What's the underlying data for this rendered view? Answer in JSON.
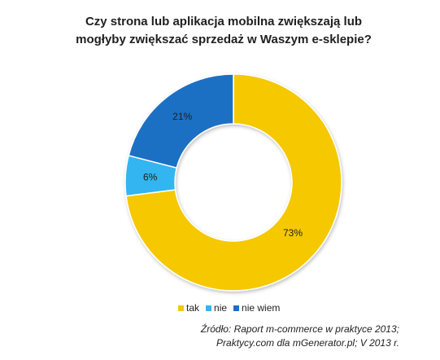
{
  "chart_data": {
    "type": "pie",
    "variant": "donut",
    "title": "Czy strona lub aplikacja mobilna zwiększają lub mogłyby zwiększać sprzedaż w Waszym e-sklepie?",
    "title_lines": [
      "Czy strona lub aplikacja mobilna zwiększają lub",
      "mogłyby zwiększać sprzedaż w Waszym e-sklepie?"
    ],
    "categories": [
      "tak",
      "nie",
      "nie wiem"
    ],
    "values": [
      73,
      6,
      21
    ],
    "data_labels": [
      "73%",
      "6%",
      "21%"
    ],
    "colors": [
      "#F5C800",
      "#33B5F0",
      "#1D6FC4"
    ],
    "legend_position": "bottom",
    "source_lines": [
      "Źródło: Raport m-commerce w praktyce 2013;",
      "Praktycy.com dla mGenerator.pl; V 2013 r."
    ]
  }
}
